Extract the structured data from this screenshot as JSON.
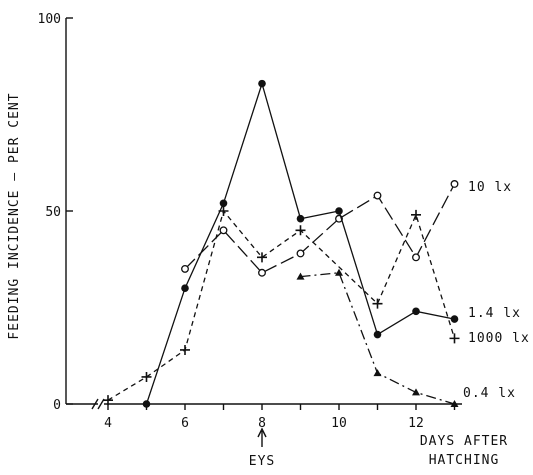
{
  "chart_data": {
    "type": "line",
    "title": "",
    "ylabel": "FEEDING INCIDENCE — PER CENT",
    "xlabel_lines": [
      "DAYS AFTER",
      "HATCHING"
    ],
    "xlim": [
      3,
      13.5
    ],
    "ylim": [
      0,
      100
    ],
    "x_ticks": [
      4,
      6,
      8,
      10,
      12
    ],
    "y_ticks": [
      0,
      50,
      100
    ],
    "marker_annotation": {
      "label": "EYS",
      "x": 8
    },
    "series": [
      {
        "name": "10 lx",
        "marker": "open-circle",
        "dash": "long-dash",
        "x": [
          6,
          7,
          8,
          9,
          10,
          11,
          12,
          13
        ],
        "values": [
          35,
          45,
          34,
          39,
          48,
          54,
          38,
          57
        ]
      },
      {
        "name": "1.4 lx",
        "marker": "filled-circle",
        "dash": "solid",
        "x": [
          5,
          6,
          7,
          8,
          9,
          10,
          11,
          12,
          13
        ],
        "values": [
          0,
          30,
          52,
          83,
          48,
          50,
          18,
          24,
          22
        ]
      },
      {
        "name": "1000 lx",
        "marker": "plus",
        "dash": "short-dash",
        "x": [
          4,
          5,
          6,
          7,
          8,
          9,
          11,
          12,
          13
        ],
        "values": [
          1,
          7,
          14,
          50,
          38,
          45,
          26,
          49,
          17
        ]
      },
      {
        "name": "0.4 lx",
        "marker": "filled-triangle",
        "dash": "dash-dot",
        "x": [
          9,
          10,
          11,
          12,
          13
        ],
        "values": [
          33,
          34,
          8,
          3,
          0
        ]
      }
    ]
  }
}
